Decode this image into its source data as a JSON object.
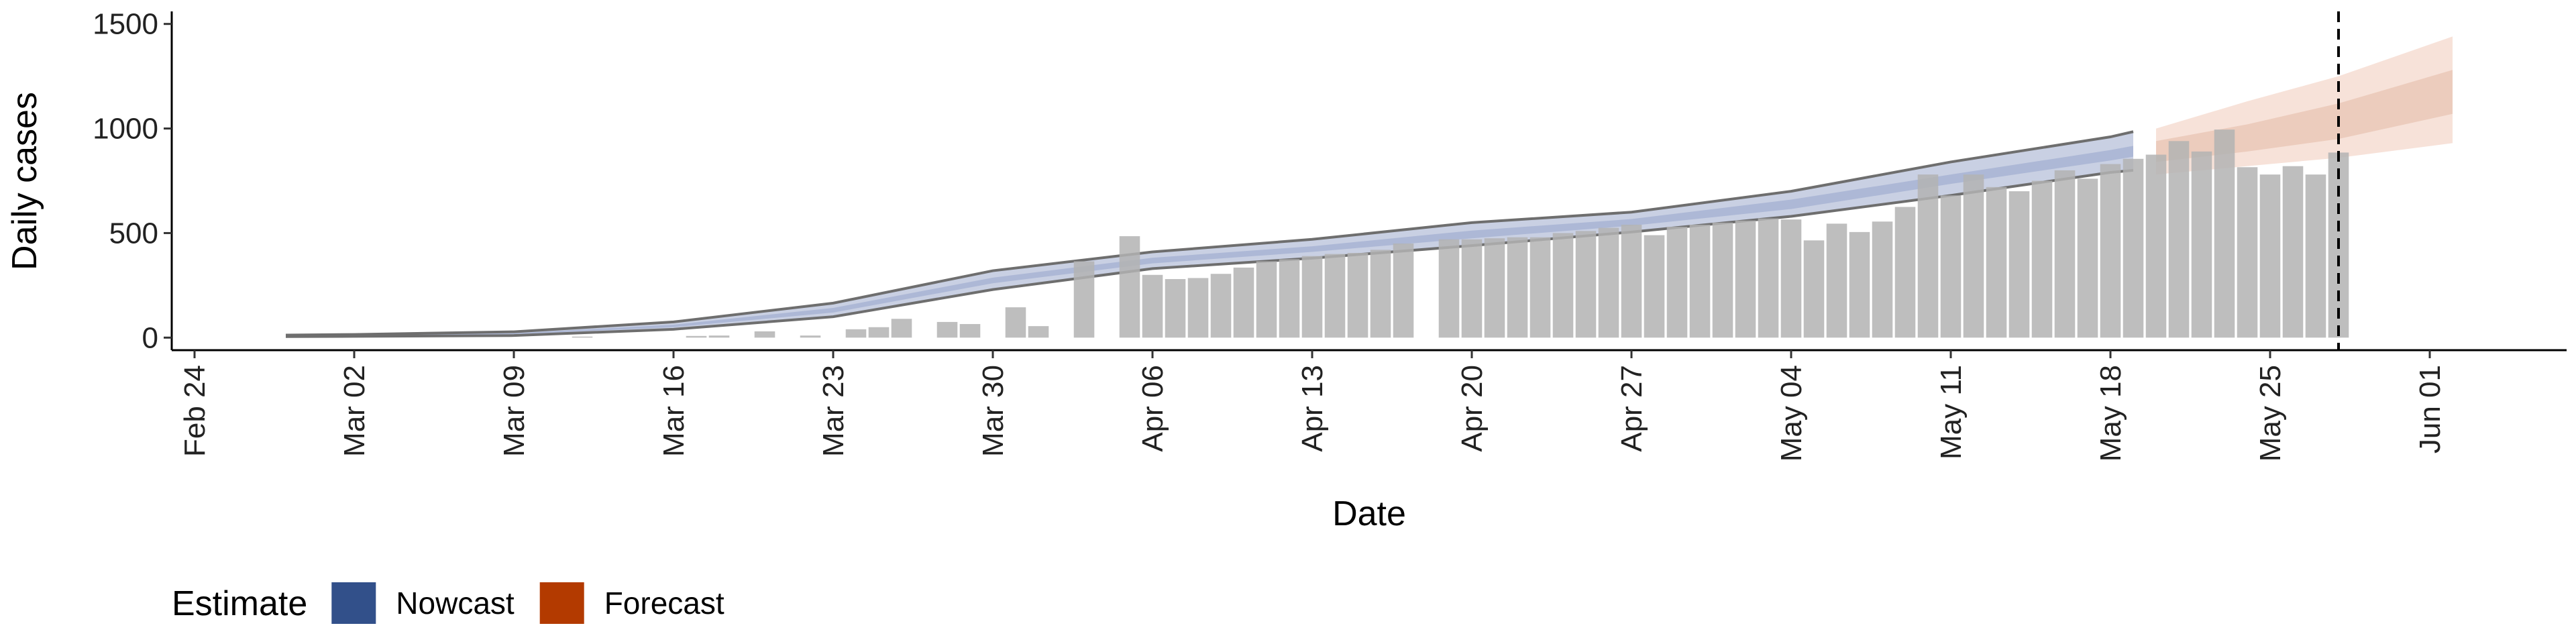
{
  "chart_data": {
    "type": "bar",
    "ylabel": "Daily cases",
    "xlabel": "Date",
    "legend_title": "Estimate",
    "x": [
      "Mar 12",
      "Mar 17",
      "Mar 18",
      "Mar 20",
      "Mar 22",
      "Mar 24",
      "Mar 25",
      "Mar 26",
      "Mar 28",
      "Mar 29",
      "Mar 31",
      "Apr 01",
      "Apr 03",
      "Apr 05",
      "Apr 06",
      "Apr 07",
      "Apr 08",
      "Apr 09",
      "Apr 10",
      "Apr 11",
      "Apr 12",
      "Apr 13",
      "Apr 14",
      "Apr 15",
      "Apr 16",
      "Apr 17",
      "Apr 19",
      "Apr 20",
      "Apr 21",
      "Apr 22",
      "Apr 23",
      "Apr 24",
      "Apr 25",
      "Apr 26",
      "Apr 27",
      "Apr 28",
      "Apr 29",
      "Apr 30",
      "May 01",
      "May 02",
      "May 03",
      "May 04",
      "May 05",
      "May 06",
      "May 07",
      "May 08",
      "May 09",
      "May 10",
      "May 11",
      "May 12",
      "May 13",
      "May 14",
      "May 15",
      "May 16",
      "May 17",
      "May 18",
      "May 19",
      "May 20",
      "May 21",
      "May 22",
      "May 23",
      "May 24",
      "May 25",
      "May 26",
      "May 27",
      "May 28"
    ],
    "values": [
      5,
      8,
      10,
      30,
      10,
      40,
      50,
      90,
      75,
      65,
      145,
      55,
      365,
      485,
      300,
      280,
      285,
      305,
      335,
      365,
      375,
      390,
      400,
      405,
      420,
      450,
      470,
      470,
      475,
      480,
      480,
      500,
      510,
      525,
      540,
      490,
      530,
      540,
      550,
      560,
      570,
      565,
      465,
      545,
      505,
      555,
      625,
      780,
      680,
      780,
      720,
      700,
      750,
      800,
      760,
      830,
      855,
      875,
      940,
      890,
      995,
      815,
      780,
      820,
      780,
      885
    ],
    "color": "#b3b3b3",
    "series": [
      {
        "name": "Nowcast",
        "color": "#32508a",
        "x": [
          "Feb 28",
          "Mar 02",
          "Mar 09",
          "Mar 16",
          "Mar 23",
          "Mar 30",
          "Apr 06",
          "Apr 13",
          "Apr 20",
          "Apr 27",
          "May 04",
          "May 11",
          "May 18",
          "May 19"
        ],
        "lower_90": [
          5,
          6,
          10,
          40,
          100,
          230,
          330,
          380,
          440,
          505,
          580,
          680,
          790,
          800
        ],
        "upper_90": [
          12,
          15,
          28,
          75,
          165,
          320,
          410,
          470,
          550,
          600,
          700,
          840,
          960,
          985
        ],
        "lower_50": [
          7,
          9,
          16,
          50,
          120,
          260,
          355,
          410,
          475,
          535,
          615,
          735,
          847,
          865
        ],
        "upper_50": [
          9,
          11,
          21,
          62,
          142,
          287,
          382,
          437,
          512,
          567,
          660,
          780,
          897,
          917
        ]
      },
      {
        "name": "Forecast",
        "color": "#b33a00",
        "x": [
          "May 20",
          "May 24",
          "May 28",
          "Jun 02"
        ],
        "lower_90": [
          780,
          820,
          860,
          930
        ],
        "upper_90": [
          1000,
          1130,
          1250,
          1440
        ],
        "lower_50": [
          840,
          890,
          950,
          1070
        ],
        "upper_50": [
          940,
          1020,
          1120,
          1280
        ]
      }
    ],
    "vline": "May 28",
    "xlim": [
      "Feb 23",
      "Jun 07"
    ],
    "xticks": [
      "Feb 24",
      "Mar 02",
      "Mar 09",
      "Mar 16",
      "Mar 23",
      "Mar 30",
      "Apr 06",
      "Apr 13",
      "Apr 20",
      "Apr 27",
      "May 04",
      "May 11",
      "May 18",
      "May 25",
      "Jun 01"
    ],
    "ylim": [
      -60,
      1560
    ],
    "yticks": [
      0,
      500,
      1000,
      1500
    ]
  }
}
